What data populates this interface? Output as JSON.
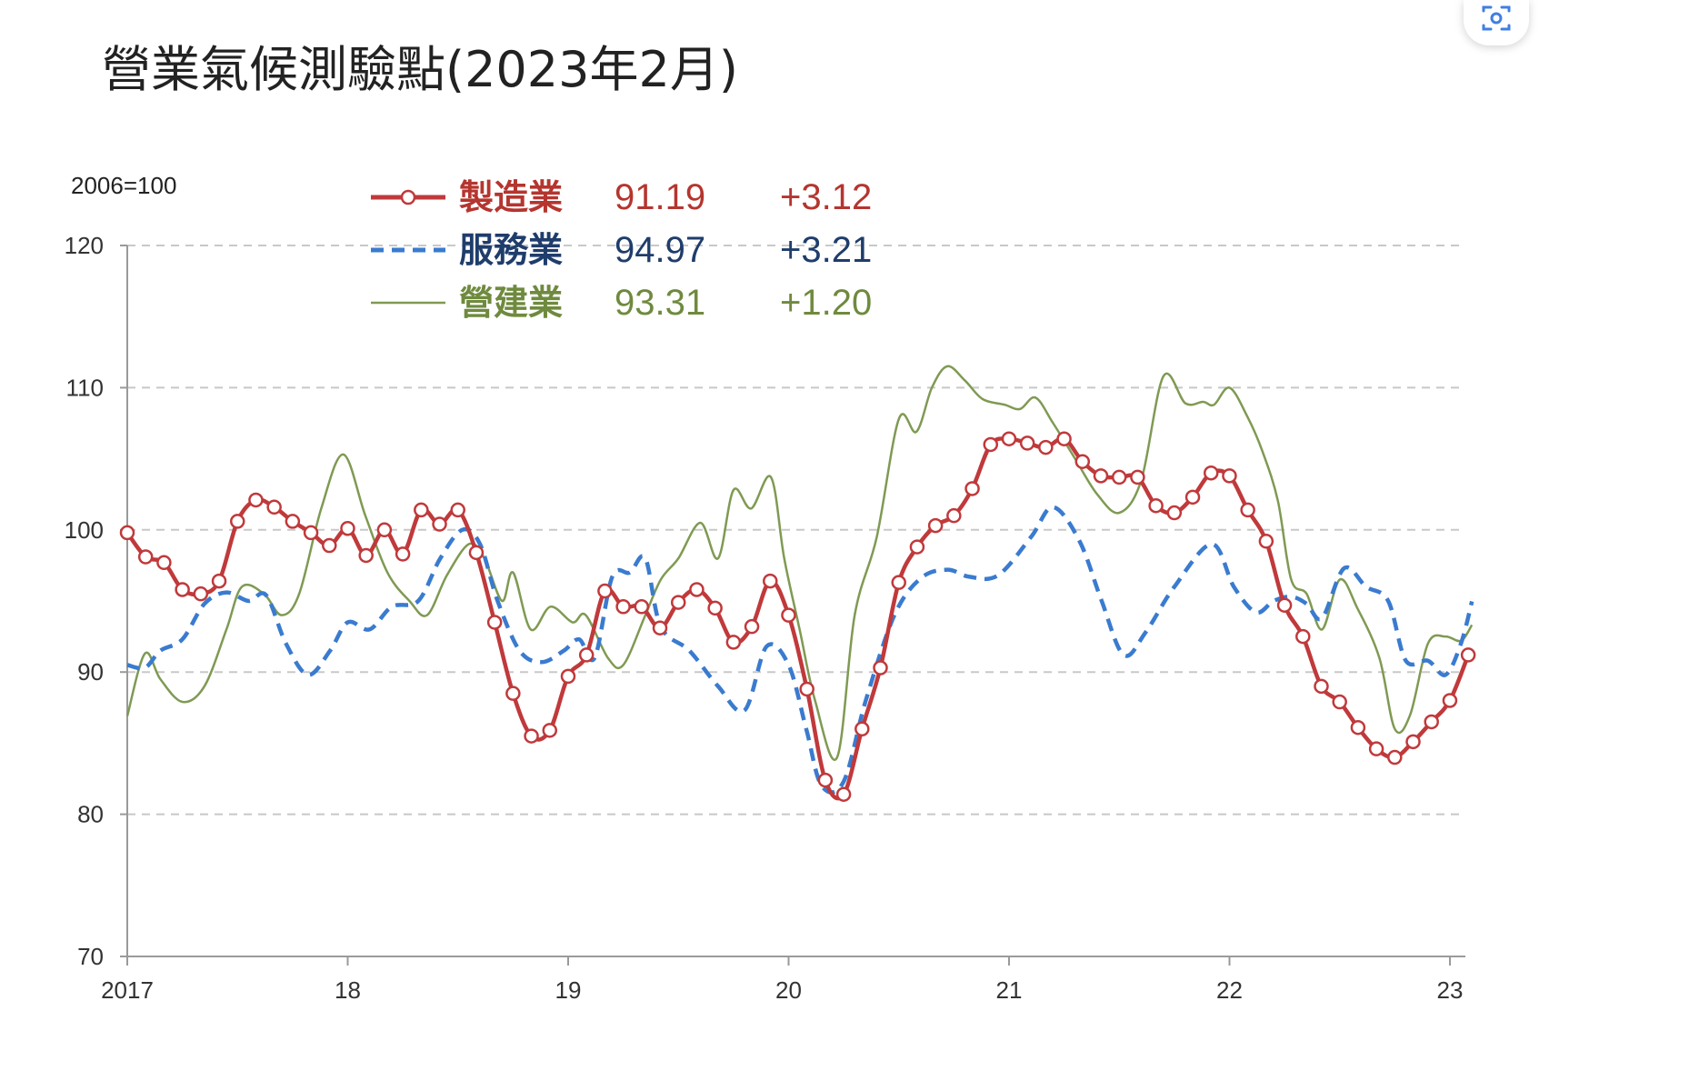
{
  "chart_data": {
    "type": "line",
    "title": "營業氣候測驗點(2023年2月)",
    "unit_label": "2006=100",
    "ylim": [
      70,
      120
    ],
    "yticks": [
      70,
      80,
      90,
      100,
      110,
      120
    ],
    "xlim": [
      2017.0,
      2023.15
    ],
    "xticks": [
      {
        "x": 2017,
        "label": "2017"
      },
      {
        "x": 2018,
        "label": "18"
      },
      {
        "x": 2019,
        "label": "19"
      },
      {
        "x": 2020,
        "label": "20"
      },
      {
        "x": 2021,
        "label": "21"
      },
      {
        "x": 2022,
        "label": "22"
      },
      {
        "x": 2023,
        "label": "23"
      }
    ],
    "grid": "horizontal dashed",
    "legend_position": "top-left",
    "series": [
      {
        "name": "製造業",
        "value": "91.19",
        "change": "+3.12",
        "color": "#c0393b",
        "style": "solid-markers",
        "x0": 2017.0,
        "step": 0.08333,
        "values": [
          99.8,
          98.1,
          97.7,
          95.8,
          95.5,
          96.4,
          100.6,
          102.1,
          101.6,
          100.6,
          99.8,
          98.9,
          100.1,
          98.2,
          100.0,
          98.3,
          101.4,
          100.4,
          101.4,
          98.4,
          93.5,
          88.5,
          85.5,
          85.9,
          89.7,
          91.2,
          95.7,
          94.6,
          94.6,
          93.1,
          94.9,
          95.8,
          94.5,
          92.1,
          93.2,
          96.4,
          94.0,
          88.8,
          82.4,
          81.4,
          86.0,
          90.3,
          96.3,
          98.8,
          100.3,
          101.0,
          102.9,
          106.0,
          106.4,
          106.1,
          105.8,
          106.4,
          104.8,
          103.8,
          103.7,
          103.7,
          101.7,
          101.2,
          102.3,
          104.0,
          103.8,
          101.4,
          99.2,
          94.7,
          92.5,
          89.0,
          87.9,
          86.1,
          84.6,
          84.0,
          85.1,
          86.5,
          88.0,
          91.2
        ]
      },
      {
        "name": "服務業",
        "value": "94.97",
        "change": "+3.21",
        "color": "#3a7bcf",
        "style": "dashed",
        "points": [
          [
            2017.0,
            90.5
          ],
          [
            2017.08,
            90.3
          ],
          [
            2017.15,
            91.5
          ],
          [
            2017.25,
            92.3
          ],
          [
            2017.35,
            94.8
          ],
          [
            2017.45,
            95.6
          ],
          [
            2017.55,
            95.0
          ],
          [
            2017.63,
            95.4
          ],
          [
            2017.72,
            92.0
          ],
          [
            2017.82,
            89.8
          ],
          [
            2017.92,
            91.5
          ],
          [
            2018.0,
            93.5
          ],
          [
            2018.1,
            93.0
          ],
          [
            2018.2,
            94.6
          ],
          [
            2018.32,
            95.0
          ],
          [
            2018.42,
            98.0
          ],
          [
            2018.52,
            100.0
          ],
          [
            2018.6,
            99.0
          ],
          [
            2018.68,
            95.0
          ],
          [
            2018.78,
            91.5
          ],
          [
            2018.88,
            90.7
          ],
          [
            2018.98,
            91.5
          ],
          [
            2019.05,
            92.3
          ],
          [
            2019.12,
            91.0
          ],
          [
            2019.2,
            96.7
          ],
          [
            2019.28,
            97.0
          ],
          [
            2019.35,
            98.0
          ],
          [
            2019.42,
            93.2
          ],
          [
            2019.55,
            91.5
          ],
          [
            2019.68,
            89.0
          ],
          [
            2019.8,
            87.3
          ],
          [
            2019.9,
            91.8
          ],
          [
            2020.0,
            90.5
          ],
          [
            2020.08,
            86.0
          ],
          [
            2020.15,
            82.0
          ],
          [
            2020.25,
            82.3
          ],
          [
            2020.35,
            88.0
          ],
          [
            2020.48,
            94.0
          ],
          [
            2020.6,
            96.6
          ],
          [
            2020.72,
            97.2
          ],
          [
            2020.82,
            96.7
          ],
          [
            2020.95,
            96.8
          ],
          [
            2021.1,
            99.5
          ],
          [
            2021.2,
            101.6
          ],
          [
            2021.32,
            99.2
          ],
          [
            2021.42,
            95.0
          ],
          [
            2021.52,
            91.2
          ],
          [
            2021.62,
            92.8
          ],
          [
            2021.75,
            96.0
          ],
          [
            2021.92,
            99.0
          ],
          [
            2022.02,
            96.0
          ],
          [
            2022.12,
            94.2
          ],
          [
            2022.2,
            95.0
          ],
          [
            2022.28,
            95.3
          ],
          [
            2022.35,
            94.8
          ],
          [
            2022.42,
            93.8
          ],
          [
            2022.52,
            97.3
          ],
          [
            2022.62,
            96.0
          ],
          [
            2022.72,
            95.0
          ],
          [
            2022.8,
            90.8
          ],
          [
            2022.9,
            90.8
          ],
          [
            2022.98,
            89.8
          ],
          [
            2023.05,
            92.0
          ],
          [
            2023.1,
            94.97
          ]
        ]
      },
      {
        "name": "營建業",
        "value": "93.31",
        "change": "+1.20",
        "color": "#7f9a53",
        "style": "thin",
        "points": [
          [
            2017.0,
            86.9
          ],
          [
            2017.08,
            91.3
          ],
          [
            2017.15,
            89.5
          ],
          [
            2017.25,
            87.9
          ],
          [
            2017.35,
            89.0
          ],
          [
            2017.45,
            93.0
          ],
          [
            2017.52,
            96.0
          ],
          [
            2017.62,
            95.5
          ],
          [
            2017.7,
            94.0
          ],
          [
            2017.78,
            95.5
          ],
          [
            2017.88,
            101.5
          ],
          [
            2017.98,
            105.3
          ],
          [
            2018.08,
            101.0
          ],
          [
            2018.18,
            97.0
          ],
          [
            2018.28,
            95.0
          ],
          [
            2018.36,
            94.0
          ],
          [
            2018.45,
            96.8
          ],
          [
            2018.55,
            99.0
          ],
          [
            2018.62,
            98.0
          ],
          [
            2018.7,
            95.0
          ],
          [
            2018.75,
            97.0
          ],
          [
            2018.83,
            93.0
          ],
          [
            2018.92,
            94.6
          ],
          [
            2019.02,
            93.5
          ],
          [
            2019.08,
            94.0
          ],
          [
            2019.18,
            91.0
          ],
          [
            2019.25,
            90.5
          ],
          [
            2019.35,
            94.0
          ],
          [
            2019.42,
            96.5
          ],
          [
            2019.5,
            98.0
          ],
          [
            2019.6,
            100.5
          ],
          [
            2019.68,
            98.0
          ],
          [
            2019.75,
            102.8
          ],
          [
            2019.83,
            101.5
          ],
          [
            2019.92,
            103.7
          ],
          [
            2019.98,
            98.0
          ],
          [
            2020.05,
            93.0
          ],
          [
            2020.12,
            88.0
          ],
          [
            2020.22,
            84.0
          ],
          [
            2020.3,
            94.0
          ],
          [
            2020.4,
            99.5
          ],
          [
            2020.5,
            107.8
          ],
          [
            2020.58,
            106.9
          ],
          [
            2020.65,
            110.0
          ],
          [
            2020.72,
            111.5
          ],
          [
            2020.8,
            110.5
          ],
          [
            2020.88,
            109.2
          ],
          [
            2020.98,
            108.8
          ],
          [
            2021.05,
            108.5
          ],
          [
            2021.12,
            109.3
          ],
          [
            2021.2,
            107.5
          ],
          [
            2021.3,
            105.0
          ],
          [
            2021.4,
            102.5
          ],
          [
            2021.5,
            101.2
          ],
          [
            2021.6,
            103.5
          ],
          [
            2021.7,
            110.8
          ],
          [
            2021.8,
            108.9
          ],
          [
            2021.88,
            109.0
          ],
          [
            2021.93,
            108.8
          ],
          [
            2022.0,
            110.0
          ],
          [
            2022.08,
            108.0
          ],
          [
            2022.15,
            105.5
          ],
          [
            2022.22,
            102.0
          ],
          [
            2022.28,
            96.5
          ],
          [
            2022.35,
            95.5
          ],
          [
            2022.42,
            93.0
          ],
          [
            2022.5,
            96.5
          ],
          [
            2022.58,
            94.5
          ],
          [
            2022.68,
            91.0
          ],
          [
            2022.75,
            86.0
          ],
          [
            2022.82,
            87.0
          ],
          [
            2022.9,
            92.0
          ],
          [
            2022.98,
            92.5
          ],
          [
            2023.05,
            92.2
          ],
          [
            2023.1,
            93.31
          ]
        ]
      }
    ]
  }
}
